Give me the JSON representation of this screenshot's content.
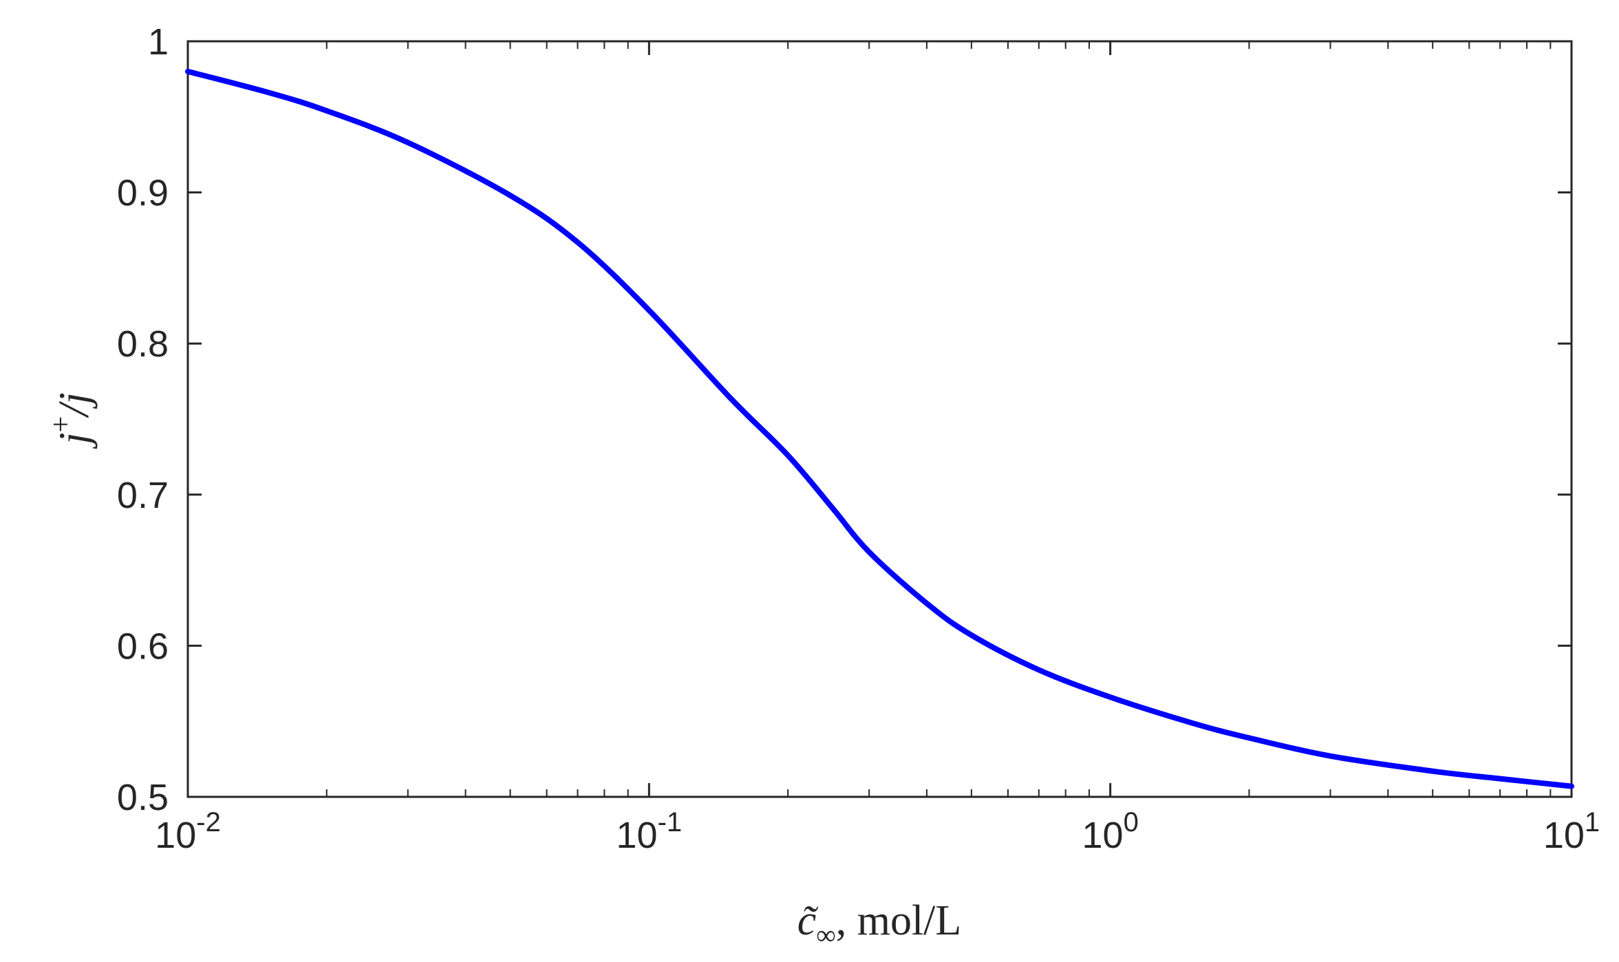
{
  "chart_data": {
    "type": "line",
    "title": "",
    "xlabel": {
      "symbol": "c̃",
      "subscript": "∞",
      "unit": ", mol/L"
    },
    "ylabel": {
      "base": "j",
      "sup": "+",
      "tail": "/j"
    },
    "xscale": "log",
    "xlim": [
      0.01,
      10
    ],
    "ylim": [
      0.5,
      1.0
    ],
    "xticks": [
      {
        "base": "10",
        "exp": "-2"
      },
      {
        "base": "10",
        "exp": "-1"
      },
      {
        "base": "10",
        "exp": "0"
      },
      {
        "base": "10",
        "exp": "1"
      }
    ],
    "yticks": [
      "0.5",
      "0.6",
      "0.7",
      "0.8",
      "0.9",
      "1"
    ],
    "grid": false,
    "series": [
      {
        "color": "#0000ff",
        "x": [
          0.01,
          0.015,
          0.02,
          0.03,
          0.05,
          0.07,
          0.1,
          0.15,
          0.2,
          0.25,
          0.3,
          0.4,
          0.5,
          0.7,
          1,
          1.5,
          2,
          3,
          5,
          7,
          10
        ],
        "y": [
          0.98,
          0.966,
          0.954,
          0.933,
          0.898,
          0.867,
          0.822,
          0.764,
          0.726,
          0.691,
          0.662,
          0.628,
          0.607,
          0.584,
          0.566,
          0.549,
          0.539,
          0.527,
          0.517,
          0.512,
          0.507
        ]
      }
    ]
  }
}
